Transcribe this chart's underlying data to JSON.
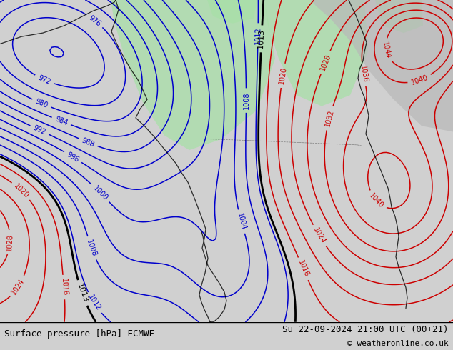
{
  "title_left": "Surface pressure [hPa] ECMWF",
  "title_right": "Su 22-09-2024 21:00 UTC (00+21)",
  "copyright": "© weatheronline.co.uk",
  "bg_color": "#d0d0d0",
  "map_bg_color": "#c8c8c8",
  "green_color": "#a8e0a8",
  "bottom_bar_color": "#f0f0f0",
  "bottom_text_color": "#000000",
  "isobar_blue": "#0000cc",
  "isobar_red": "#cc0000",
  "isobar_black": "#000000",
  "figure_width": 6.34,
  "figure_height": 4.9,
  "dpi": 100
}
